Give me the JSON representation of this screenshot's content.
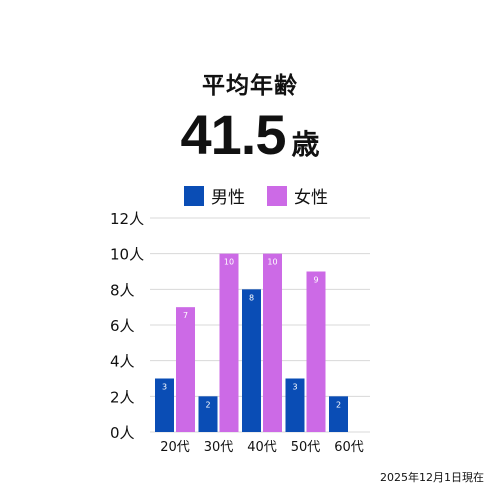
{
  "header": {
    "title": "平均年齢",
    "average_value": "41.5",
    "average_unit": "歳"
  },
  "colors": {
    "male": "#0a4db5",
    "female": "#cc6ae6"
  },
  "footer": {
    "date_note": "2025年12月1日現在"
  },
  "chart_data": {
    "type": "bar",
    "categories": [
      "20代",
      "30代",
      "40代",
      "50代",
      "60代"
    ],
    "series": [
      {
        "name": "男性",
        "values": [
          3,
          2,
          8,
          3,
          2
        ]
      },
      {
        "name": "女性",
        "values": [
          7,
          10,
          10,
          9,
          0
        ]
      }
    ],
    "y_ticks": [
      "0人",
      "2人",
      "4人",
      "6人",
      "8人",
      "10人",
      "12人"
    ],
    "ylim": [
      0,
      12
    ],
    "grid": true,
    "legend_position": "top"
  }
}
